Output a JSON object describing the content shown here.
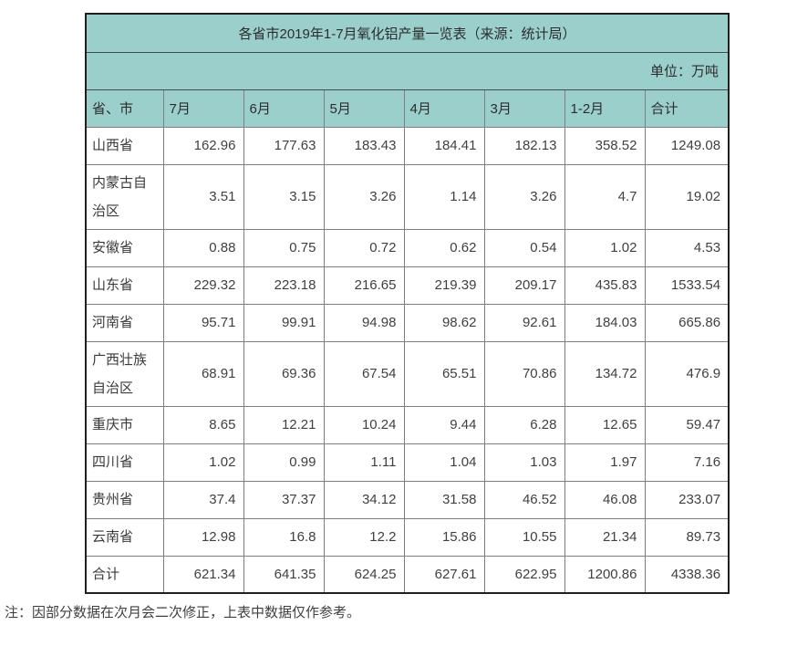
{
  "table": {
    "title": "各省市2019年1-7月氧化铝产量一览表（来源：统计局）",
    "unit_label": "单位：万吨",
    "columns": [
      "省、市",
      "7月",
      "6月",
      "5月",
      "4月",
      "3月",
      "1-2月",
      "合计"
    ],
    "rows": [
      {
        "name": "山西省",
        "values": [
          "162.96",
          "177.63",
          "183.43",
          "184.41",
          "182.13",
          "358.52",
          "1249.08"
        ]
      },
      {
        "name": "内蒙古自治区",
        "values": [
          "3.51",
          "3.15",
          "3.26",
          "1.14",
          "3.26",
          "4.7",
          "19.02"
        ]
      },
      {
        "name": "安徽省",
        "values": [
          "0.88",
          "0.75",
          "0.72",
          "0.62",
          "0.54",
          "1.02",
          "4.53"
        ]
      },
      {
        "name": "山东省",
        "values": [
          "229.32",
          "223.18",
          "216.65",
          "219.39",
          "209.17",
          "435.83",
          "1533.54"
        ]
      },
      {
        "name": "河南省",
        "values": [
          "95.71",
          "99.91",
          "94.98",
          "98.62",
          "92.61",
          "184.03",
          "665.86"
        ]
      },
      {
        "name": "广西壮族自治区",
        "values": [
          "68.91",
          "69.36",
          "67.54",
          "65.51",
          "70.86",
          "134.72",
          "476.9"
        ]
      },
      {
        "name": "重庆市",
        "values": [
          "8.65",
          "12.21",
          "10.24",
          "9.44",
          "6.28",
          "12.65",
          "59.47"
        ]
      },
      {
        "name": "四川省",
        "values": [
          "1.02",
          "0.99",
          "1.11",
          "1.04",
          "1.03",
          "1.97",
          "7.16"
        ]
      },
      {
        "name": "贵州省",
        "values": [
          "37.4",
          "37.37",
          "34.12",
          "31.58",
          "46.52",
          "46.08",
          "233.07"
        ]
      },
      {
        "name": "云南省",
        "values": [
          "12.98",
          "16.8",
          "12.2",
          "15.86",
          "10.55",
          "21.34",
          "89.73"
        ]
      },
      {
        "name": "合计",
        "values": [
          "621.34",
          "641.35",
          "624.25",
          "627.61",
          "622.95",
          "1200.86",
          "4338.36"
        ]
      }
    ]
  },
  "footnote": "注：因部分数据在次月会二次修正，上表中数据仅作参考。",
  "colors": {
    "header_bg": "#9bcfcb",
    "outer_border": "#1f1f1f",
    "grid_border": "#7f7f7f",
    "text": "#3c3c3c"
  },
  "chart_data": {
    "type": "table",
    "title": "各省市2019年1-7月氧化铝产量一览表（来源：统计局）",
    "unit": "万吨",
    "columns": [
      "省、市",
      "7月",
      "6月",
      "5月",
      "4月",
      "3月",
      "1-2月",
      "合计"
    ],
    "rows": [
      [
        "山西省",
        162.96,
        177.63,
        183.43,
        184.41,
        182.13,
        358.52,
        1249.08
      ],
      [
        "内蒙古自治区",
        3.51,
        3.15,
        3.26,
        1.14,
        3.26,
        4.7,
        19.02
      ],
      [
        "安徽省",
        0.88,
        0.75,
        0.72,
        0.62,
        0.54,
        1.02,
        4.53
      ],
      [
        "山东省",
        229.32,
        223.18,
        216.65,
        219.39,
        209.17,
        435.83,
        1533.54
      ],
      [
        "河南省",
        95.71,
        99.91,
        94.98,
        98.62,
        92.61,
        184.03,
        665.86
      ],
      [
        "广西壮族自治区",
        68.91,
        69.36,
        67.54,
        65.51,
        70.86,
        134.72,
        476.9
      ],
      [
        "重庆市",
        8.65,
        12.21,
        10.24,
        9.44,
        6.28,
        12.65,
        59.47
      ],
      [
        "四川省",
        1.02,
        0.99,
        1.11,
        1.04,
        1.03,
        1.97,
        7.16
      ],
      [
        "贵州省",
        37.4,
        37.37,
        34.12,
        31.58,
        46.52,
        46.08,
        233.07
      ],
      [
        "云南省",
        12.98,
        16.8,
        12.2,
        15.86,
        10.55,
        21.34,
        89.73
      ],
      [
        "合计",
        621.34,
        641.35,
        624.25,
        627.61,
        622.95,
        1200.86,
        4338.36
      ]
    ],
    "notes": "注：因部分数据在次月会二次修正，上表中数据仅作参考。"
  }
}
